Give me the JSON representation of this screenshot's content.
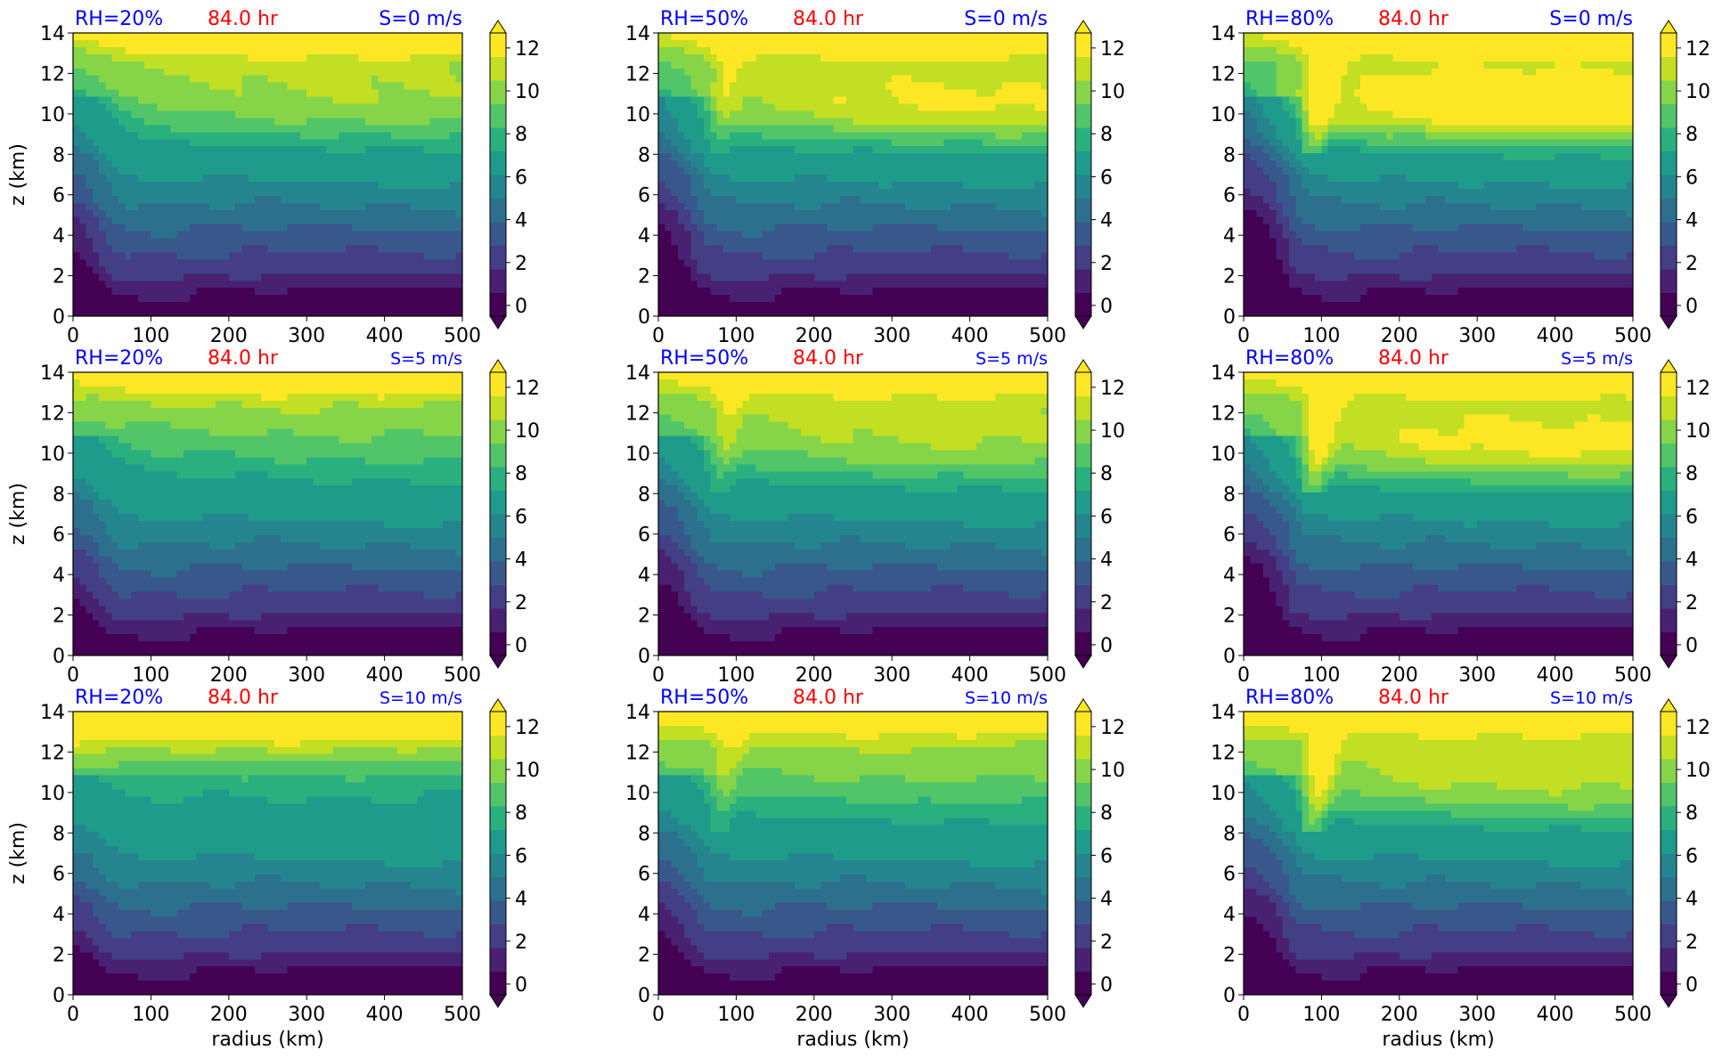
{
  "figure": {
    "xlabel": "radius (km)",
    "ylabel": "z (km)",
    "x_ticks": [
      "0",
      "100",
      "200",
      "300",
      "400",
      "500"
    ],
    "y_ticks": [
      "0",
      "2",
      "4",
      "6",
      "8",
      "10",
      "12",
      "14"
    ],
    "cbar_ticks": [
      "0",
      "2",
      "4",
      "6",
      "8",
      "10",
      "12"
    ],
    "colors": {
      "title_left": "#0000ff",
      "title_center": "#ff0000",
      "title_right": "#0000ff"
    }
  },
  "colormap": {
    "name": "viridis",
    "levels": [
      -1,
      0,
      1,
      2,
      3,
      4,
      5,
      6,
      7,
      8,
      9,
      10,
      11,
      12,
      13
    ],
    "extend": "both",
    "colors": [
      "#440154",
      "#482173",
      "#433e85",
      "#38588c",
      "#2d708e",
      "#25858e",
      "#1e9b8a",
      "#2ab07f",
      "#52c569",
      "#86d549",
      "#c2df23",
      "#fde725"
    ]
  },
  "chart_data": [
    {
      "type": "heatmap",
      "title_left": "RH=20%",
      "title_center": "84.0 hr",
      "title_right": "S=0 m/s",
      "xlabel": "",
      "ylabel": "z (km)",
      "xlim": [
        0,
        500
      ],
      "ylim": [
        0,
        14
      ],
      "colorbar_range": [
        0,
        13
      ]
    },
    {
      "type": "heatmap",
      "title_left": "RH=50%",
      "title_center": "84.0 hr",
      "title_right": "S=0 m/s",
      "xlabel": "",
      "ylabel": "",
      "xlim": [
        0,
        500
      ],
      "ylim": [
        0,
        14
      ],
      "colorbar_range": [
        0,
        13
      ]
    },
    {
      "type": "heatmap",
      "title_left": "RH=80%",
      "title_center": "84.0 hr",
      "title_right": "S=0 m/s",
      "xlabel": "",
      "ylabel": "",
      "xlim": [
        0,
        500
      ],
      "ylim": [
        0,
        14
      ],
      "colorbar_range": [
        0,
        13
      ]
    },
    {
      "type": "heatmap",
      "title_left": "RH=20%",
      "title_center": "84.0 hr",
      "title_right": "S=5 m/s",
      "xlabel": "",
      "ylabel": "z (km)",
      "xlim": [
        0,
        500
      ],
      "ylim": [
        0,
        14
      ],
      "colorbar_range": [
        0,
        13
      ]
    },
    {
      "type": "heatmap",
      "title_left": "RH=50%",
      "title_center": "84.0 hr",
      "title_right": "S=5 m/s",
      "xlabel": "",
      "ylabel": "",
      "xlim": [
        0,
        500
      ],
      "ylim": [
        0,
        14
      ],
      "colorbar_range": [
        0,
        13
      ]
    },
    {
      "type": "heatmap",
      "title_left": "RH=80%",
      "title_center": "84.0 hr",
      "title_right": "S=5 m/s",
      "xlabel": "",
      "ylabel": "",
      "xlim": [
        0,
        500
      ],
      "ylim": [
        0,
        14
      ],
      "colorbar_range": [
        0,
        13
      ]
    },
    {
      "type": "heatmap",
      "title_left": "RH=20%",
      "title_center": "84.0 hr",
      "title_right": "S=10 m/s",
      "xlabel": "radius (km)",
      "ylabel": "z (km)",
      "xlim": [
        0,
        500
      ],
      "ylim": [
        0,
        14
      ],
      "colorbar_range": [
        0,
        13
      ]
    },
    {
      "type": "heatmap",
      "title_left": "RH=50%",
      "title_center": "84.0 hr",
      "title_right": "S=10 m/s",
      "xlabel": "radius (km)",
      "ylabel": "",
      "xlim": [
        0,
        500
      ],
      "ylim": [
        0,
        14
      ],
      "colorbar_range": [
        0,
        13
      ]
    },
    {
      "type": "heatmap",
      "title_left": "RH=80%",
      "title_center": "84.0 hr",
      "title_right": "S=10 m/s",
      "xlabel": "radius (km)",
      "ylabel": "",
      "xlim": [
        0,
        500
      ],
      "ylim": [
        0,
        14
      ],
      "colorbar_range": [
        0,
        13
      ]
    }
  ]
}
